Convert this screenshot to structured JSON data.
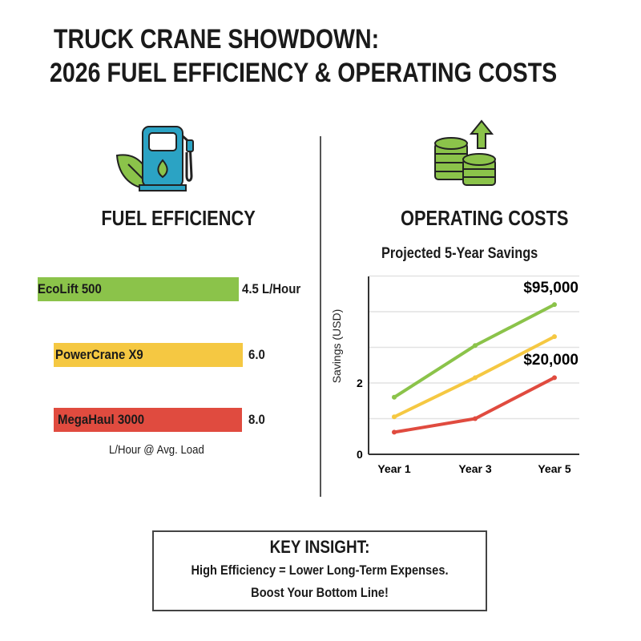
{
  "title": {
    "line1": "TRUCK CRANE SHOWDOWN:",
    "line2": "2026 FUEL EFFICIENCY & OPERATING COSTS"
  },
  "icons": {
    "left": "fuel-pump-leaf-icon",
    "right": "coins-arrow-up-icon"
  },
  "colors": {
    "green": "#8bc34a",
    "yellow": "#f5c842",
    "red": "#e04b3f",
    "pump": "#2ba3c4"
  },
  "chart_data": [
    {
      "type": "bar",
      "title": "FUEL EFFICIENCY",
      "orientation": "horizontal",
      "categories": [
        "EcoLift 500",
        "PowerCrane X9",
        "MegaHaul 3000"
      ],
      "values": [
        4.5,
        6.0,
        8.0
      ],
      "value_labels": [
        "4.5 L/Hour",
        "6.0",
        "8.0"
      ],
      "xlabel": "L/Hour @ Avg. Load",
      "colors": [
        "#8bc34a",
        "#f5c842",
        "#e04b3f"
      ]
    },
    {
      "type": "line",
      "section_title": "OPERATING COSTS",
      "title": "Projected 5-Year Savings",
      "ylabel": "Savings (USD)",
      "categories": [
        "Year 1",
        "Year 3",
        "Year 5"
      ],
      "y_ticks": [
        "0",
        "2"
      ],
      "ylim": [
        0,
        5
      ],
      "grid": true,
      "series": [
        {
          "color": "#8bc34a",
          "values": [
            1.6,
            3.05,
            4.2
          ]
        },
        {
          "color": "#f5c842",
          "values": [
            1.05,
            2.15,
            3.3
          ]
        },
        {
          "color": "#e04b3f",
          "values": [
            0.62,
            1.0,
            2.15
          ]
        }
      ],
      "annotations": [
        "$95,000",
        "$20,000"
      ]
    }
  ],
  "insight": {
    "heading": "KEY INSIGHT:",
    "line1": "High Efficiency = Lower Long-Term Expenses.",
    "line2": "Boost Your Bottom Line!"
  }
}
